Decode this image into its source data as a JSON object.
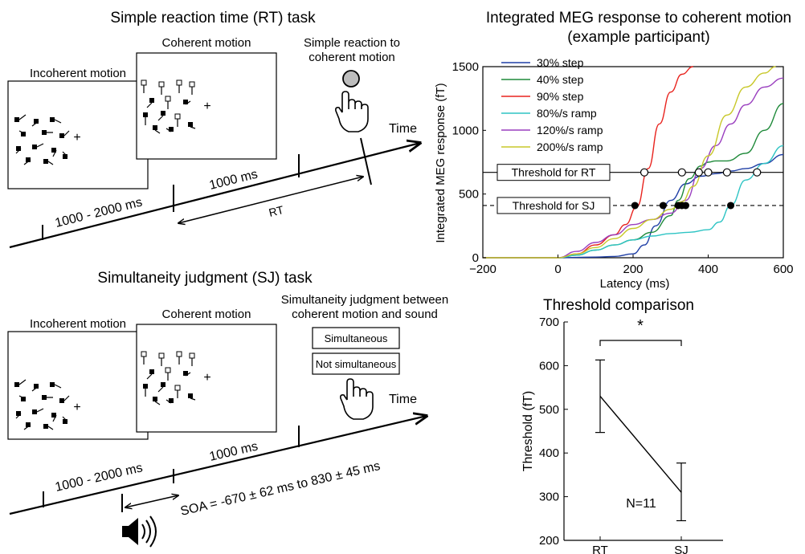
{
  "rt_task": {
    "title": "Simple reaction time (RT) task",
    "incoherent_label": "Incoherent motion",
    "coherent_label": "Coherent motion",
    "reaction_label_1": "Simple reaction to",
    "reaction_label_2": "coherent motion",
    "time_label": "Time",
    "interval_1": "1000 - 2000 ms",
    "interval_2": "1000 ms",
    "rt_label": "RT"
  },
  "sj_task": {
    "title": "Simultaneity judgment (SJ) task",
    "incoherent_label": "Incoherent motion",
    "coherent_label": "Coherent motion",
    "judgment_label_1": "Simultaneity judgment between",
    "judgment_label_2": "coherent motion and sound",
    "option_1": "Simultaneous",
    "option_2": "Not simultaneous",
    "time_label": "Time",
    "interval_1": "1000 - 2000 ms",
    "interval_2": "1000 ms",
    "soa_label": "SOA = -670 ± 62 ms to 830 ± 45 ms"
  },
  "meg_chart": {
    "title_1": "Integrated MEG response to coherent motion",
    "title_2": "(example participant)",
    "xlabel": "Latency (ms)",
    "ylabel": "Integrated MEG response (fT)",
    "x_ticks": [
      "−200",
      "0",
      "200",
      "400",
      "600"
    ],
    "y_ticks": [
      "0",
      "500",
      "1000",
      "1500"
    ],
    "threshold_rt_label": "Threshold for RT",
    "threshold_sj_label": "Threshold for SJ"
  },
  "threshold_chart": {
    "title": "Threshold comparison",
    "ylabel": "Threshold (fT)",
    "y_ticks": [
      "200",
      "300",
      "400",
      "500",
      "600",
      "700"
    ],
    "categories": [
      "RT",
      "SJ"
    ],
    "significance": "*",
    "n_label": "N=11"
  },
  "chart_data": [
    {
      "type": "line",
      "xlim": [
        -200,
        600
      ],
      "ylim": [
        0,
        1500
      ],
      "legend_position": "top-left",
      "thresholds": {
        "rt": 670,
        "sj": 410
      },
      "series": [
        {
          "name": "30% step",
          "color": "#1f3fa6",
          "x": [
            -200,
            0,
            100,
            150,
            200,
            230,
            260,
            300,
            340,
            380,
            420,
            460,
            500,
            550,
            600
          ],
          "y": [
            0,
            0,
            5,
            10,
            30,
            100,
            250,
            450,
            580,
            640,
            660,
            680,
            700,
            740,
            810
          ]
        },
        {
          "name": "40% step",
          "color": "#1f8a3a",
          "x": [
            -200,
            0,
            50,
            100,
            150,
            200,
            250,
            300,
            320,
            350,
            380,
            400,
            420,
            450,
            500,
            550,
            600
          ],
          "y": [
            0,
            0,
            20,
            60,
            100,
            140,
            200,
            330,
            450,
            620,
            720,
            750,
            760,
            760,
            820,
            1000,
            1210
          ]
        },
        {
          "name": "90% step",
          "color": "#e8231e",
          "x": [
            -200,
            0,
            50,
            100,
            150,
            180,
            210,
            240,
            270,
            300,
            330,
            360
          ],
          "y": [
            0,
            0,
            30,
            100,
            180,
            260,
            400,
            700,
            1050,
            1300,
            1440,
            1500
          ]
        },
        {
          "name": "80%/s ramp",
          "color": "#2ec4c4",
          "x": [
            -200,
            0,
            50,
            100,
            150,
            200,
            250,
            300,
            350,
            400,
            430,
            460,
            500,
            550,
            600
          ],
          "y": [
            0,
            0,
            20,
            60,
            100,
            140,
            170,
            190,
            200,
            220,
            280,
            410,
            610,
            740,
            880
          ]
        },
        {
          "name": "120%/s ramp",
          "color": "#9a3fbf",
          "x": [
            -200,
            0,
            50,
            100,
            150,
            200,
            250,
            300,
            340,
            380,
            420,
            460,
            500,
            550,
            600
          ],
          "y": [
            0,
            0,
            50,
            120,
            180,
            260,
            300,
            350,
            450,
            700,
            880,
            1050,
            1200,
            1340,
            1410
          ]
        },
        {
          "name": "200%/s ramp",
          "color": "#c8c82a",
          "x": [
            -200,
            0,
            50,
            100,
            150,
            200,
            250,
            300,
            330,
            360,
            400,
            450,
            500,
            550,
            580
          ],
          "y": [
            0,
            0,
            30,
            80,
            150,
            230,
            300,
            380,
            440,
            560,
            800,
            1120,
            1340,
            1450,
            1500
          ]
        }
      ],
      "rt_crossings_ms": [
        230,
        330,
        375,
        400,
        450,
        530
      ],
      "sj_crossings_ms": [
        205,
        280,
        320,
        330,
        340,
        460
      ]
    },
    {
      "type": "line",
      "categories": [
        "RT",
        "SJ"
      ],
      "ylim": [
        200,
        700
      ],
      "series": [
        {
          "values": [
            530,
            310
          ],
          "error_low": [
            447,
            245
          ],
          "error_high": [
            613,
            377
          ]
        }
      ]
    }
  ]
}
